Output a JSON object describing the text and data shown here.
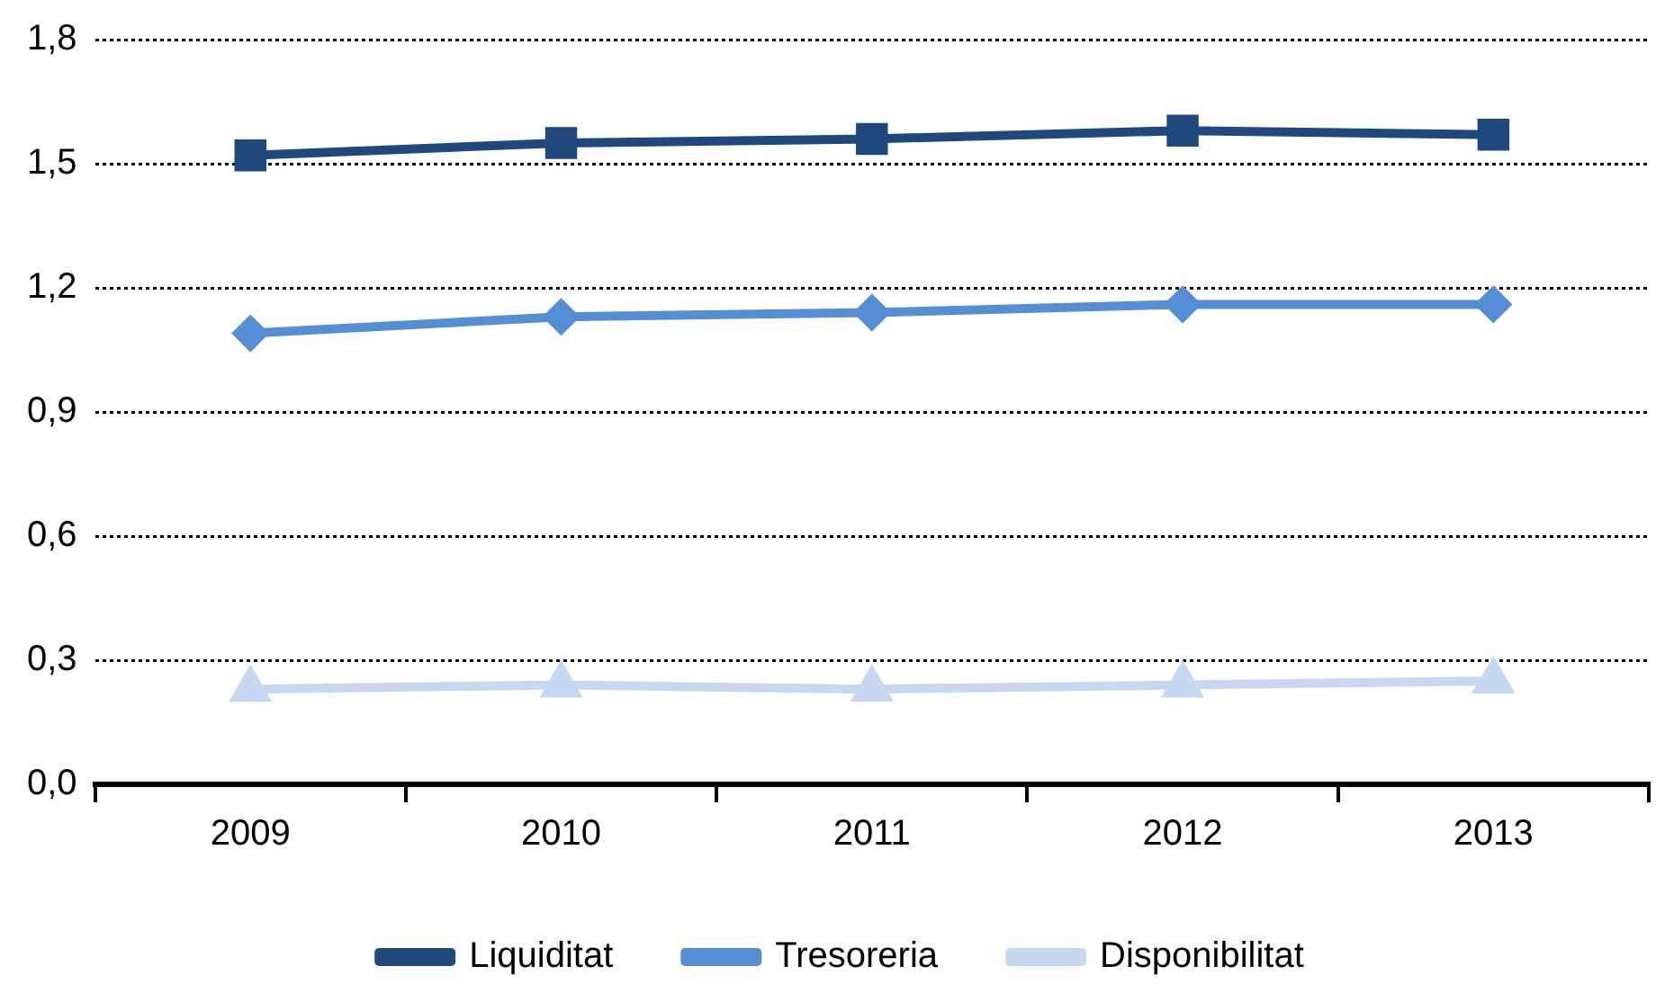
{
  "chart_data": {
    "type": "line",
    "categories": [
      "2009",
      "2010",
      "2011",
      "2012",
      "2013"
    ],
    "series": [
      {
        "name": "Liquiditat",
        "color": "#1f497d",
        "marker": "square",
        "values": [
          1.52,
          1.55,
          1.56,
          1.58,
          1.57
        ]
      },
      {
        "name": "Tresoreria",
        "color": "#558ed5",
        "marker": "diamond",
        "values": [
          1.09,
          1.13,
          1.14,
          1.16,
          1.16
        ]
      },
      {
        "name": "Disponibilitat",
        "color": "#c6d9f1",
        "marker": "triangle",
        "values": [
          0.23,
          0.24,
          0.23,
          0.24,
          0.25
        ]
      }
    ],
    "ylim": [
      0,
      1.8
    ],
    "yticks": [
      {
        "value": 0,
        "label": "0,0"
      },
      {
        "value": 0.3,
        "label": "0,3"
      },
      {
        "value": 0.6,
        "label": "0,6"
      },
      {
        "value": 0.9,
        "label": "0,9"
      },
      {
        "value": 1.2,
        "label": "1,2"
      },
      {
        "value": 1.5,
        "label": "1,5"
      },
      {
        "value": 1.8,
        "label": "1,8"
      }
    ],
    "grid": "y",
    "legend": "bottom",
    "line_style": "solid"
  }
}
